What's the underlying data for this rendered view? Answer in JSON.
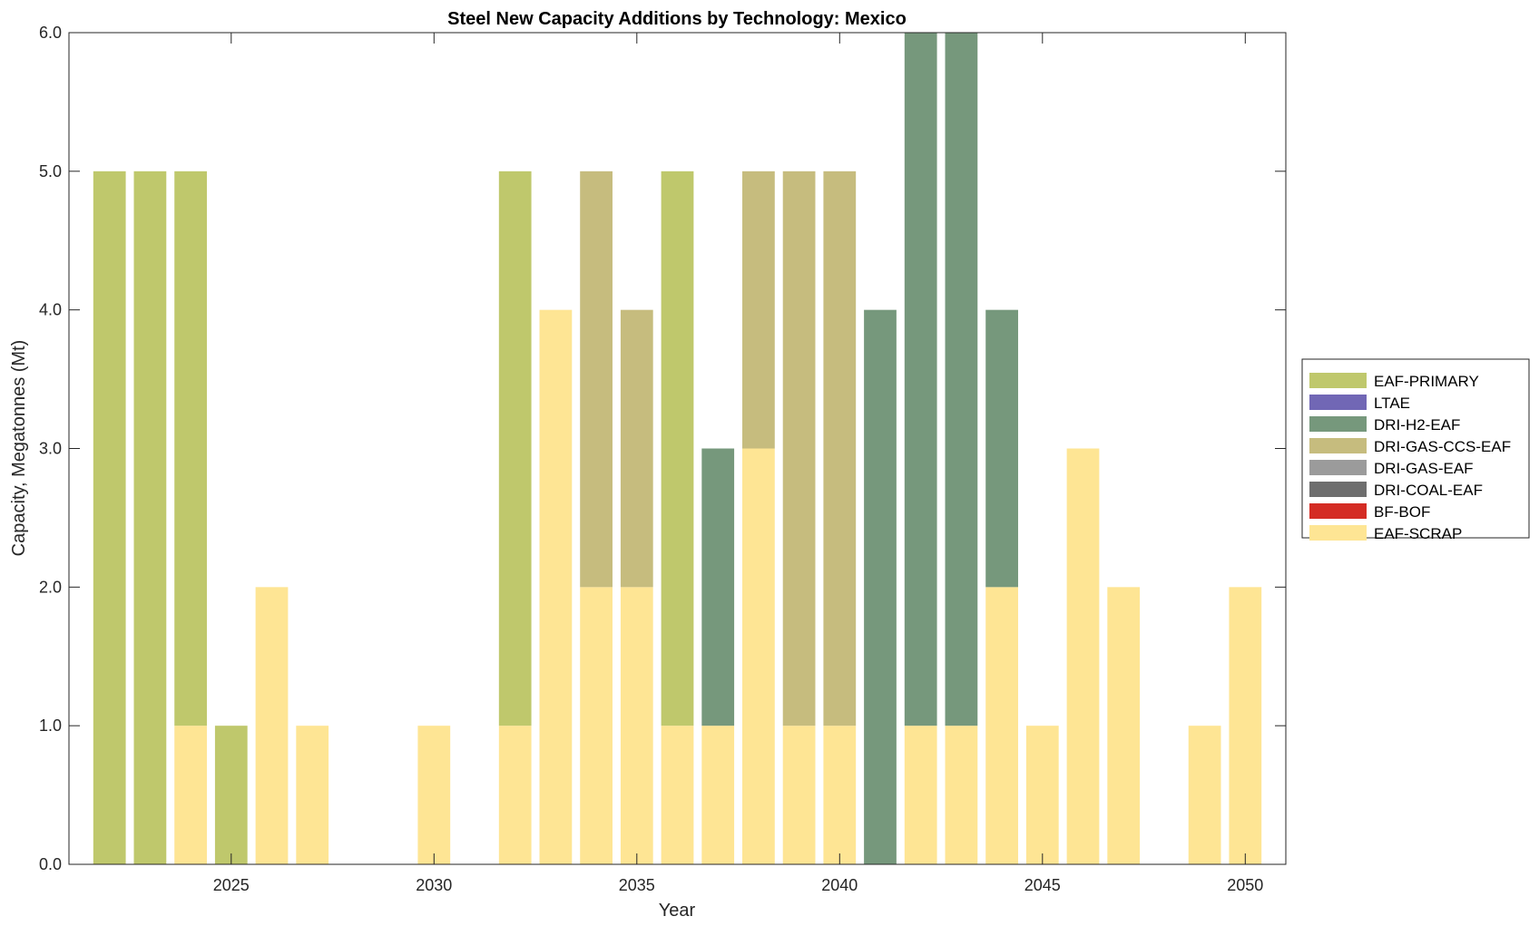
{
  "chart_data": {
    "type": "bar",
    "stacked": true,
    "title": "Steel New Capacity Additions by Technology: Mexico",
    "xlabel": "Year",
    "ylabel": "Capacity, Megatonnes (Mt)",
    "xlim": [
      2021,
      2051
    ],
    "ylim": [
      0,
      6
    ],
    "xticks": [
      2025,
      2030,
      2035,
      2040,
      2045,
      2050
    ],
    "yticks": [
      0,
      1,
      2,
      3,
      4,
      5,
      6
    ],
    "ytick_labels": [
      "0.0",
      "1.0",
      "2.0",
      "3.0",
      "4.0",
      "5.0",
      "6.0"
    ],
    "legend_position": "right",
    "categories": [
      2022,
      2023,
      2024,
      2025,
      2026,
      2027,
      2028,
      2029,
      2030,
      2031,
      2032,
      2033,
      2034,
      2035,
      2036,
      2037,
      2038,
      2039,
      2040,
      2041,
      2042,
      2043,
      2044,
      2045,
      2046,
      2047,
      2048,
      2049,
      2050
    ],
    "series": [
      {
        "name": "EAF-SCRAP",
        "color": "#FEE594",
        "values": [
          0,
          0,
          1,
          0,
          2,
          1,
          0,
          0,
          1,
          0,
          1,
          4,
          2,
          2,
          1,
          1,
          3,
          1,
          1,
          0,
          1,
          1,
          2,
          1,
          3,
          2,
          0,
          1,
          2
        ]
      },
      {
        "name": "BF-BOF",
        "color": "#D42C24",
        "values": [
          0,
          0,
          0,
          0,
          0,
          0,
          0,
          0,
          0,
          0,
          0,
          0,
          0,
          0,
          0,
          0,
          0,
          0,
          0,
          0,
          0,
          0,
          0,
          0,
          0,
          0,
          0,
          0,
          0
        ]
      },
      {
        "name": "DRI-COAL-EAF",
        "color": "#6E6E6E",
        "values": [
          0,
          0,
          0,
          0,
          0,
          0,
          0,
          0,
          0,
          0,
          0,
          0,
          0,
          0,
          0,
          0,
          0,
          0,
          0,
          0,
          0,
          0,
          0,
          0,
          0,
          0,
          0,
          0,
          0
        ]
      },
      {
        "name": "DRI-GAS-EAF",
        "color": "#9B9B9B",
        "values": [
          0,
          0,
          0,
          0,
          0,
          0,
          0,
          0,
          0,
          0,
          0,
          0,
          0,
          0,
          0,
          0,
          0,
          0,
          0,
          0,
          0,
          0,
          0,
          0,
          0,
          0,
          0,
          0,
          0
        ]
      },
      {
        "name": "DRI-GAS-CCS-EAF",
        "color": "#C6BC7E",
        "values": [
          0,
          0,
          0,
          0,
          0,
          0,
          0,
          0,
          0,
          0,
          0,
          0,
          3,
          2,
          0,
          0,
          2,
          4,
          4,
          0,
          0,
          0,
          0,
          0,
          0,
          0,
          0,
          0,
          0
        ]
      },
      {
        "name": "DRI-H2-EAF",
        "color": "#76987C",
        "values": [
          0,
          0,
          0,
          0,
          0,
          0,
          0,
          0,
          0,
          0,
          0,
          0,
          0,
          0,
          0,
          2,
          0,
          0,
          0,
          4,
          5,
          5,
          2,
          0,
          0,
          0,
          0,
          0,
          0
        ]
      },
      {
        "name": "LTAE",
        "color": "#7167B5",
        "values": [
          0,
          0,
          0,
          0,
          0,
          0,
          0,
          0,
          0,
          0,
          0,
          0,
          0,
          0,
          0,
          0,
          0,
          0,
          0,
          0,
          0,
          0,
          0,
          0,
          0,
          0,
          0,
          0,
          0
        ]
      },
      {
        "name": "EAF-PRIMARY",
        "color": "#BFC86C",
        "values": [
          5,
          5,
          4,
          1,
          0,
          0,
          0,
          0,
          0,
          0,
          4,
          0,
          0,
          0,
          4,
          0,
          0,
          0,
          0,
          0,
          0,
          0,
          0,
          0,
          0,
          0,
          0,
          0,
          0
        ]
      }
    ],
    "legend_order": [
      "EAF-PRIMARY",
      "LTAE",
      "DRI-H2-EAF",
      "DRI-GAS-CCS-EAF",
      "DRI-GAS-EAF",
      "DRI-COAL-EAF",
      "BF-BOF",
      "EAF-SCRAP"
    ]
  }
}
